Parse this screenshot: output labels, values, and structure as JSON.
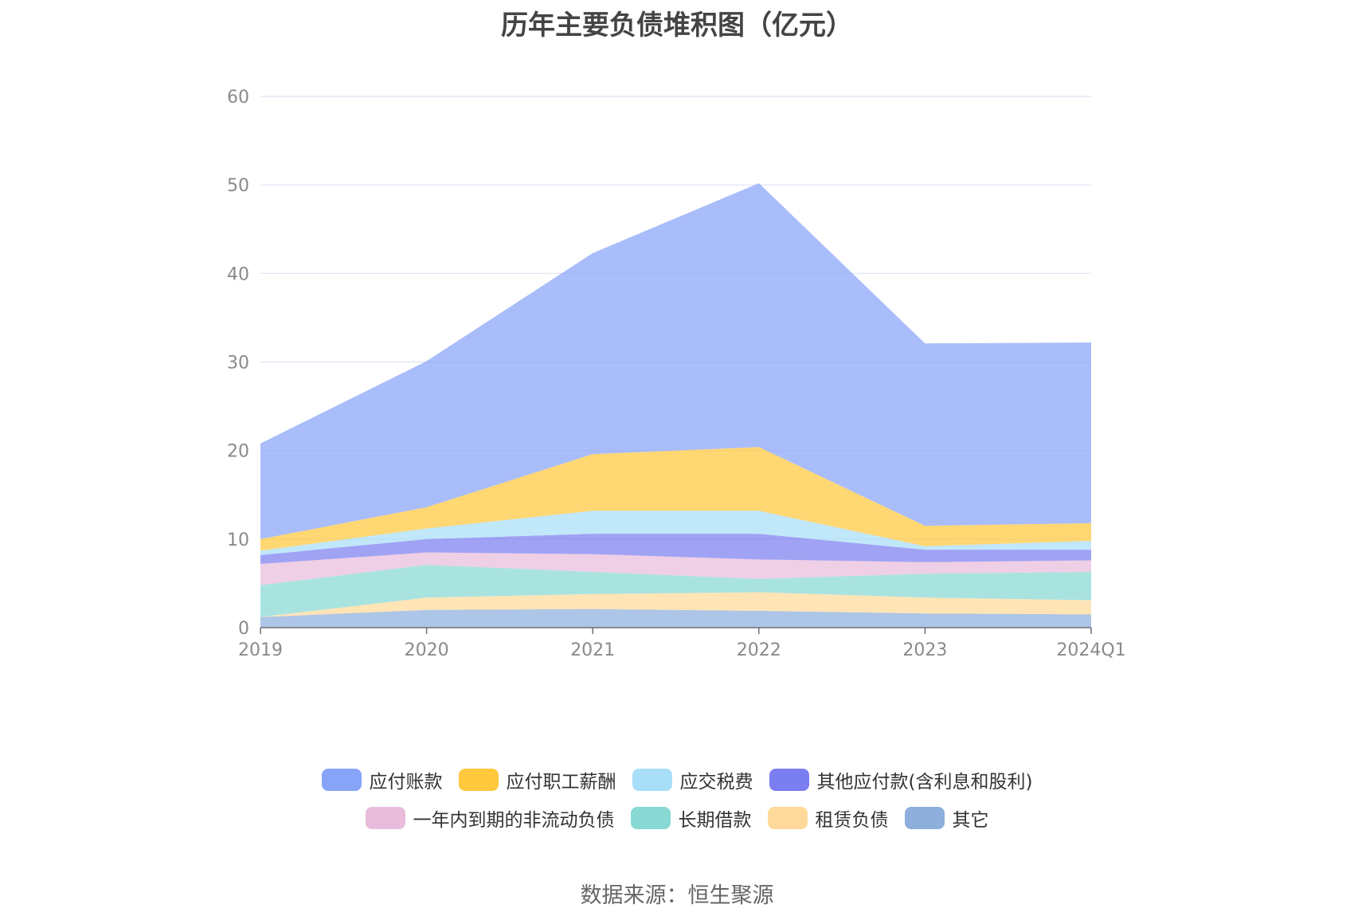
{
  "chart_data": {
    "type": "area",
    "stacked": true,
    "title": "历年主要负债堆积图（亿元）",
    "categories": [
      "2019",
      "2020",
      "2021",
      "2022",
      "2023",
      "2024Q1"
    ],
    "y_ticks": [
      "0",
      "10",
      "20",
      "30",
      "40",
      "50",
      "60"
    ],
    "ylim": [
      0,
      60
    ],
    "grid": true,
    "legend_position": "bottom",
    "series": [
      {
        "name": "其它",
        "color": "#8eaedc",
        "values": [
          1.2,
          2.0,
          2.1,
          1.9,
          1.6,
          1.5
        ]
      },
      {
        "name": "租赁负债",
        "color": "#ffd99a",
        "values": [
          0.0,
          1.4,
          1.7,
          2.1,
          1.8,
          1.6
        ]
      },
      {
        "name": "长期借款",
        "color": "#88d8d4",
        "values": [
          3.6,
          3.7,
          2.5,
          1.5,
          2.7,
          3.2
        ]
      },
      {
        "name": "一年内到期的非流动负债",
        "color": "#e9bcdc",
        "values": [
          2.4,
          1.4,
          2.0,
          2.2,
          1.3,
          1.3
        ]
      },
      {
        "name": "其他应付款(含利息和股利)",
        "color": "#7b7ef0",
        "values": [
          1.0,
          1.5,
          2.3,
          2.9,
          1.4,
          1.2
        ]
      },
      {
        "name": "应交税费",
        "color": "#a8def8",
        "values": [
          0.5,
          1.2,
          2.6,
          2.6,
          0.4,
          1.0
        ]
      },
      {
        "name": "应付职工薪酬",
        "color": "#ffc83d",
        "values": [
          1.3,
          2.4,
          6.4,
          7.2,
          2.3,
          2.0
        ]
      },
      {
        "name": "应付账款",
        "color": "#88a4f8",
        "values": [
          10.8,
          16.5,
          22.7,
          29.8,
          20.6,
          20.4
        ]
      }
    ],
    "legend": [
      {
        "label": "应付账款",
        "color": "#88a4f8"
      },
      {
        "label": "应付职工薪酬",
        "color": "#ffc83d"
      },
      {
        "label": "应交税费",
        "color": "#a8def8"
      },
      {
        "label": "其他应付款(含利息和股利)",
        "color": "#7b7ef0"
      },
      {
        "label": "一年内到期的非流动负债",
        "color": "#e9bcdc"
      },
      {
        "label": "长期借款",
        "color": "#88d8d4"
      },
      {
        "label": "租赁负债",
        "color": "#ffd99a"
      },
      {
        "label": "其它",
        "color": "#8eaedc"
      }
    ],
    "source": "数据来源：恒生聚源"
  }
}
